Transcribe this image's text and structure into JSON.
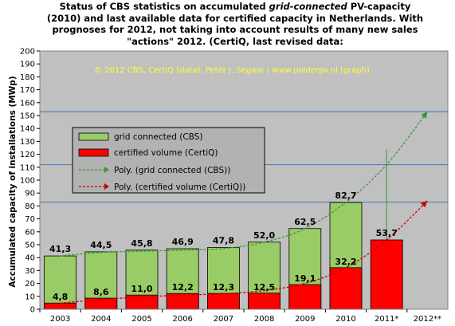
{
  "title": {
    "line1_pre": "Status of CBS statistics on accumulated ",
    "line1_em": "grid-connected",
    "line1_post": " PV-capacity",
    "line2": "(2010) and last available data for certified capacity in Netherlands.  With",
    "line3": "prognoses for 2012, not taking into account results of many new sales",
    "line4": "\"actions\" 2012. (CertiQ, last revised data:"
  },
  "copyright": "© 2012 CBS, CertiQ (data), Peter J. Segaar / www.polderpv.nl (graph)",
  "legend": {
    "grid": "grid connected (CBS)",
    "cert": "certified volume (CertiQ)",
    "poly_grid": "Poly. (grid connected (CBS))",
    "poly_cert": "Poly. (certified volume (CertiQ))"
  },
  "colors": {
    "grid_fill": "#99cc66",
    "cert_fill": "#ff0000",
    "plot_bg": "#c0c0c0",
    "trend_grid": "#339933",
    "trend_cert": "#cc0000",
    "hline": "#4f81bd"
  },
  "chart_data": {
    "type": "bar",
    "categories": [
      "2003",
      "2004",
      "2005",
      "2006",
      "2007",
      "2008",
      "2009",
      "2010",
      "2011*",
      "2012**"
    ],
    "series": [
      {
        "name": "grid connected (CBS)",
        "values": [
          41.3,
          44.5,
          45.8,
          46.9,
          47.8,
          52.0,
          62.5,
          82.7,
          null,
          null
        ],
        "labels": [
          "41,3",
          "44,5",
          "45,8",
          "46,9",
          "47,8",
          "52,0",
          "62,5",
          "82,7",
          "",
          ""
        ]
      },
      {
        "name": "certified volume (CertiQ)",
        "values": [
          4.8,
          8.6,
          11.0,
          12.2,
          12.3,
          12.5,
          19.1,
          32.2,
          53.7,
          null
        ],
        "labels": [
          "4,8",
          "8,6",
          "11,0",
          "12,2",
          "12,3",
          "12,5",
          "19,1",
          "32,2",
          "53,7",
          ""
        ]
      }
    ],
    "trend_grid": {
      "name": "Poly. (grid connected (CBS))",
      "values": [
        41.3,
        44.0,
        45.0,
        45.8,
        47.0,
        52.0,
        62.5,
        82.7,
        112.0,
        153.0
      ]
    },
    "trend_cert": {
      "name": "Poly. (certified volume (CertiQ))",
      "values": [
        4.8,
        7.5,
        9.5,
        11.0,
        12.0,
        14.5,
        20.0,
        32.2,
        53.7,
        84.0
      ]
    },
    "reference_lines": [
      83,
      112,
      153
    ],
    "spike_2011": [
      53.7,
      124
    ],
    "ylabel": "Accumulated capacity of installations (MWp)",
    "xlabel": "",
    "ylim": [
      0,
      200
    ],
    "yticks": [
      0,
      10,
      20,
      30,
      40,
      50,
      60,
      70,
      80,
      90,
      100,
      110,
      120,
      130,
      140,
      150,
      160,
      170,
      180,
      190,
      200
    ],
    "grid": false,
    "legend_position": "upper-left inside plot"
  }
}
